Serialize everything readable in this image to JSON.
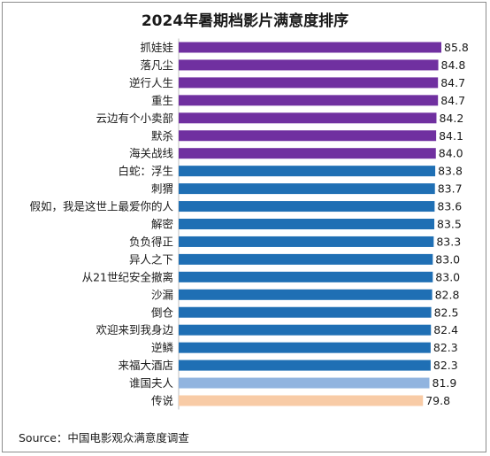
{
  "title": "2024年暑期档影片满意度排序",
  "source": "Source：中国电影观众满意度调查",
  "colors": {
    "purple": "#7030a0",
    "blue": "#1f6fb4",
    "light_blue": "#91b4df",
    "peach": "#f8cba6",
    "axis": "#bfbfbf",
    "text": "#1a1a1a"
  },
  "chart_data": {
    "type": "bar",
    "orientation": "horizontal",
    "xlim": [
      0,
      85.8
    ],
    "grid": false,
    "categories": [
      "抓娃娃",
      "落凡尘",
      "逆行人生",
      "重生",
      "云边有个小卖部",
      "默杀",
      "海关战线",
      "白蛇：浮生",
      "刺猬",
      "假如，我是这世上最爱你的人",
      "解密",
      "负负得正",
      "异人之下",
      "从21世纪安全撤离",
      "沙漏",
      "倒仓",
      "欢迎来到我身边",
      "逆鳞",
      "来福大酒店",
      "谁国夫人",
      "传说"
    ],
    "values": [
      85.8,
      84.8,
      84.7,
      84.7,
      84.2,
      84.1,
      84.0,
      83.8,
      83.7,
      83.6,
      83.5,
      83.3,
      83.0,
      83.0,
      82.8,
      82.5,
      82.4,
      82.3,
      82.3,
      81.9,
      79.8
    ],
    "value_labels": [
      "85.8",
      "84.8",
      "84.7",
      "84.7",
      "84.2",
      "84.1",
      "84.0",
      "83.8",
      "83.7",
      "83.6",
      "83.5",
      "83.3",
      "83.0",
      "83.0",
      "82.8",
      "82.5",
      "82.4",
      "82.3",
      "82.3",
      "81.9",
      "79.8"
    ],
    "bar_colors": [
      "purple",
      "purple",
      "purple",
      "purple",
      "purple",
      "purple",
      "purple",
      "blue",
      "blue",
      "blue",
      "blue",
      "blue",
      "blue",
      "blue",
      "blue",
      "blue",
      "blue",
      "blue",
      "blue",
      "light_blue",
      "peach"
    ]
  }
}
